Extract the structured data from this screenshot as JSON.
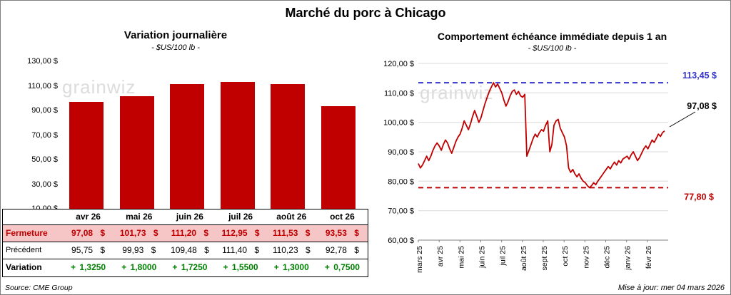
{
  "title": "Marché du porc à Chicago",
  "watermark": "grainwiz",
  "footer": {
    "source": "Source: CME Group",
    "updated": "Mise à jour: mer 04 mars 2026"
  },
  "table": {
    "months": [
      "avr 26",
      "mai 26",
      "juin 26",
      "juil 26",
      "août 26",
      "oct 26"
    ],
    "rows": [
      {
        "label": "Fermeture",
        "style": "fermeture",
        "values": [
          "97,08 $",
          "101,73 $",
          "111,20 $",
          "112,95 $",
          "111,53 $",
          "93,53 $"
        ]
      },
      {
        "label": "Précédent",
        "style": "precedent",
        "values": [
          "95,75 $",
          "99,93 $",
          "109,48 $",
          "111,40 $",
          "110,23 $",
          "92,78 $"
        ]
      },
      {
        "label": "Variation",
        "style": "variation",
        "values": [
          "+ 1,3250",
          "+ 1,8000",
          "+ 1,7250",
          "+ 1,5500",
          "+ 1,3000",
          "+ 0,7500"
        ]
      }
    ]
  },
  "chart_data": [
    {
      "type": "bar",
      "title": "Variation journalière",
      "subtitle": "- $US/100 lb -",
      "categories": [
        "avr 26",
        "mai 26",
        "juin 26",
        "juil 26",
        "août 26",
        "oct 26"
      ],
      "values": [
        97.08,
        101.73,
        111.2,
        112.95,
        111.53,
        93.53
      ],
      "ylim": [
        10,
        130
      ],
      "ytick_labels": [
        "130,00 $",
        "110,00 $",
        "90,00 $",
        "70,00 $",
        "50,00 $",
        "30,00 $",
        "10,00 $"
      ],
      "bar_color": "#C00000",
      "grid": false
    },
    {
      "type": "line",
      "title": "Comportement échéance immédiate depuis 1 an",
      "subtitle": "- $US/100 lb -",
      "ylim": [
        60,
        120
      ],
      "ytick_labels": [
        "120,00 $",
        "110,00 $",
        "100,00 $",
        "90,00 $",
        "80,00 $",
        "70,00 $",
        "60,00 $"
      ],
      "xtick_labels": [
        "mars 25",
        "avr 25",
        "mai 25",
        "juin 25",
        "juil 25",
        "août 25",
        "sept 25",
        "oct 25",
        "nov 25",
        "déc 25",
        "janv 26",
        "févr 26"
      ],
      "series_color": "#C00000",
      "grid": true,
      "max_line": {
        "value": 113.45,
        "label": "113,45 $",
        "color": "#3333CC"
      },
      "min_line": {
        "value": 77.8,
        "label": "77,80 $",
        "color": "#C00000"
      },
      "last_point_label": "97,08 $",
      "values": [
        86.0,
        84.5,
        85.5,
        87.0,
        88.5,
        87.0,
        88.5,
        90.5,
        92.0,
        93.0,
        92.0,
        90.5,
        92.5,
        94.0,
        93.0,
        91.0,
        89.5,
        91.5,
        93.5,
        95.0,
        96.0,
        98.0,
        100.5,
        99.0,
        97.5,
        99.5,
        102.0,
        104.0,
        102.0,
        100.0,
        101.5,
        104.0,
        106.5,
        108.5,
        110.5,
        112.0,
        113.45,
        112.0,
        113.0,
        111.5,
        110.0,
        107.5,
        105.5,
        107.0,
        109.0,
        110.5,
        111.0,
        109.5,
        110.5,
        109.0,
        108.5,
        109.5,
        88.5,
        90.5,
        92.5,
        94.5,
        96.0,
        95.0,
        96.5,
        97.5,
        97.0,
        99.0,
        100.5,
        90.0,
        92.5,
        99.0,
        100.5,
        101.0,
        98.0,
        96.5,
        95.0,
        92.0,
        84.5,
        83.0,
        84.0,
        82.5,
        81.5,
        82.5,
        81.0,
        80.0,
        79.5,
        78.5,
        77.8,
        78.5,
        79.5,
        78.8,
        80.0,
        81.0,
        82.0,
        83.0,
        84.0,
        85.0,
        84.2,
        85.5,
        86.5,
        85.5,
        87.0,
        86.2,
        87.5,
        88.0,
        88.5,
        87.5,
        89.0,
        90.0,
        88.5,
        87.0,
        88.0,
        89.5,
        91.0,
        92.0,
        91.0,
        92.5,
        94.0,
        93.2,
        94.5,
        96.0,
        95.2,
        96.5,
        97.08
      ]
    }
  ]
}
